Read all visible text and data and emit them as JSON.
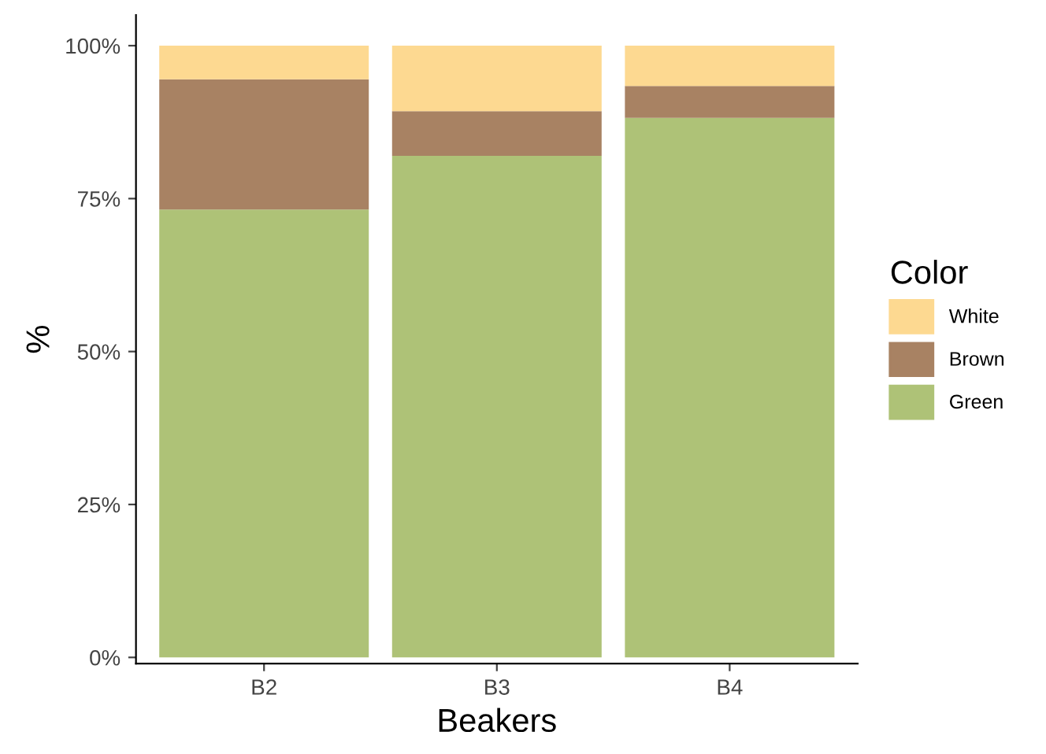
{
  "chart_data": {
    "type": "bar",
    "stacked": true,
    "xlabel": "Beakers",
    "ylabel": "%",
    "legend_title": "Color",
    "legend": "right",
    "categories": [
      "B2",
      "B3",
      "B4"
    ],
    "series": [
      {
        "name": "Green",
        "color": "#aec277",
        "values": [
          73.2,
          82,
          88.2
        ]
      },
      {
        "name": "Brown",
        "color": "#a88263",
        "values": [
          21.3,
          7.3,
          5.2
        ]
      },
      {
        "name": "White",
        "color": "#fdd991",
        "values": [
          5.5,
          10.7,
          6.6
        ]
      }
    ],
    "ylim": [
      -1,
      105
    ],
    "yticks": [
      {
        "value": 0,
        "label": "0%"
      },
      {
        "value": 25,
        "label": "25%"
      },
      {
        "value": 50,
        "label": "50%"
      },
      {
        "value": 75,
        "label": "75%"
      },
      {
        "value": 100,
        "label": "100%"
      }
    ],
    "grid": false
  }
}
